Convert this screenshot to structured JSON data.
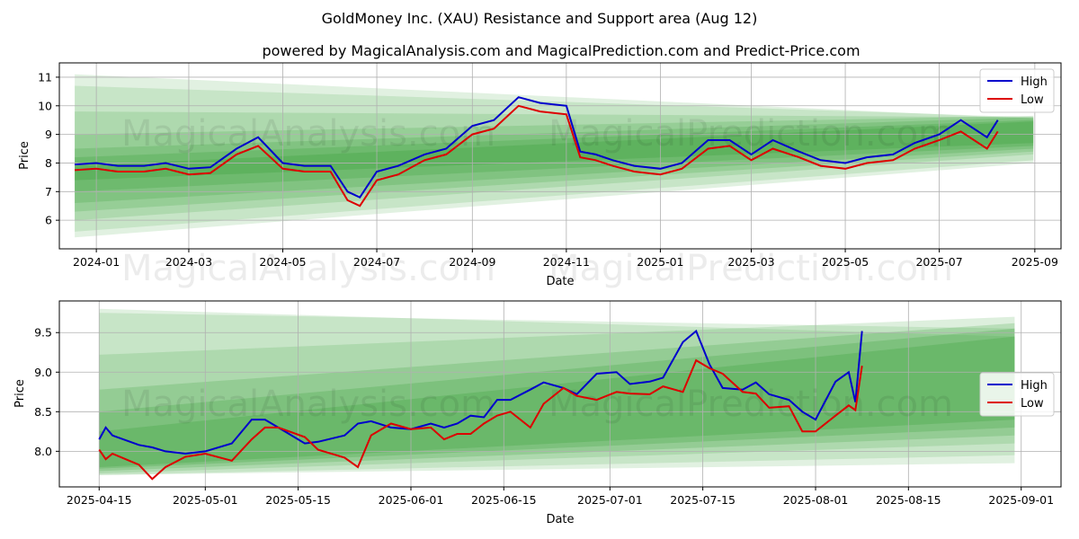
{
  "title": "GoldMoney Inc. (XAU) Resistance and Support area (Aug 12)",
  "subtitle": "powered by MagicalAnalysis.com and MagicalPrediction.com and Predict-Price.com",
  "watermark_left": "MagicalAnalysis.com",
  "watermark_right": "MagicalPrediction.com",
  "colors": {
    "high": "#0000cc",
    "low": "#dd0000",
    "band": "#2e9a2e",
    "grid": "#b0b0b0"
  },
  "chart_data": [
    {
      "type": "line",
      "xlabel": "Date",
      "ylabel": "Price",
      "xlim": [
        "2023-12-08",
        "2025-09-18"
      ],
      "ylim": [
        5.0,
        11.5
      ],
      "xticks": [
        "2024-01",
        "2024-03",
        "2024-05",
        "2024-07",
        "2024-09",
        "2024-11",
        "2025-01",
        "2025-03",
        "2025-05",
        "2025-07",
        "2025-09"
      ],
      "xtick_dates": [
        "2024-01-01",
        "2024-03-01",
        "2024-05-01",
        "2024-07-01",
        "2024-09-01",
        "2024-11-01",
        "2025-01-01",
        "2025-03-01",
        "2025-05-01",
        "2025-07-01",
        "2025-09-01"
      ],
      "yticks": [
        6,
        7,
        8,
        9,
        10,
        11
      ],
      "grid": true,
      "legend": "top-right",
      "x": [
        "2023-12-18",
        "2024-01-01",
        "2024-01-15",
        "2024-02-01",
        "2024-02-15",
        "2024-03-01",
        "2024-03-15",
        "2024-04-01",
        "2024-04-15",
        "2024-05-01",
        "2024-05-15",
        "2024-06-01",
        "2024-06-12",
        "2024-06-20",
        "2024-07-01",
        "2024-07-15",
        "2024-08-01",
        "2024-08-15",
        "2024-09-01",
        "2024-09-15",
        "2024-10-01",
        "2024-10-15",
        "2024-11-01",
        "2024-11-10",
        "2024-11-20",
        "2024-12-01",
        "2024-12-15",
        "2025-01-01",
        "2025-01-15",
        "2025-02-01",
        "2025-02-15",
        "2025-03-01",
        "2025-03-15",
        "2025-04-01",
        "2025-04-15",
        "2025-05-01",
        "2025-05-15",
        "2025-06-01",
        "2025-06-15",
        "2025-07-01",
        "2025-07-15",
        "2025-08-01",
        "2025-08-08"
      ],
      "series": [
        {
          "name": "High",
          "values": [
            7.95,
            8.0,
            7.9,
            7.9,
            8.0,
            7.8,
            7.85,
            8.5,
            8.9,
            8.0,
            7.9,
            7.9,
            7.0,
            6.8,
            7.7,
            7.9,
            8.3,
            8.5,
            9.3,
            9.5,
            10.3,
            10.1,
            10.0,
            8.4,
            8.3,
            8.1,
            7.9,
            7.8,
            8.0,
            8.8,
            8.8,
            8.3,
            8.8,
            8.4,
            8.1,
            8.0,
            8.2,
            8.3,
            8.7,
            9.0,
            9.5,
            8.9,
            9.5
          ]
        },
        {
          "name": "Low",
          "values": [
            7.75,
            7.8,
            7.7,
            7.7,
            7.8,
            7.6,
            7.65,
            8.3,
            8.6,
            7.8,
            7.7,
            7.7,
            6.7,
            6.5,
            7.4,
            7.6,
            8.1,
            8.3,
            9.0,
            9.2,
            10.0,
            9.8,
            9.7,
            8.2,
            8.1,
            7.9,
            7.7,
            7.6,
            7.8,
            8.5,
            8.6,
            8.1,
            8.5,
            8.2,
            7.9,
            7.8,
            8.0,
            8.1,
            8.5,
            8.8,
            9.1,
            8.5,
            9.1
          ]
        }
      ]
    },
    {
      "type": "line",
      "xlabel": "Date",
      "ylabel": "Price",
      "xlim": [
        "2025-04-09",
        "2025-09-07"
      ],
      "ylim": [
        7.55,
        9.9
      ],
      "xticks": [
        "2025-04-15",
        "2025-05-01",
        "2025-05-15",
        "2025-06-01",
        "2025-06-15",
        "2025-07-01",
        "2025-07-15",
        "2025-08-01",
        "2025-08-15",
        "2025-09-01"
      ],
      "yticks": [
        8.0,
        8.5,
        9.0,
        9.5
      ],
      "ytick_labels": [
        "8.0",
        "8.5",
        "9.0",
        "9.5"
      ],
      "grid": true,
      "legend": "right",
      "x": [
        "2025-04-15",
        "2025-04-16",
        "2025-04-17",
        "2025-04-21",
        "2025-04-23",
        "2025-04-25",
        "2025-04-28",
        "2025-05-01",
        "2025-05-05",
        "2025-05-08",
        "2025-05-10",
        "2025-05-12",
        "2025-05-16",
        "2025-05-18",
        "2025-05-22",
        "2025-05-24",
        "2025-05-26",
        "2025-05-29",
        "2025-06-01",
        "2025-06-04",
        "2025-06-06",
        "2025-06-08",
        "2025-06-10",
        "2025-06-12",
        "2025-06-14",
        "2025-06-16",
        "2025-06-19",
        "2025-06-21",
        "2025-06-24",
        "2025-06-26",
        "2025-06-29",
        "2025-07-02",
        "2025-07-04",
        "2025-07-07",
        "2025-07-09",
        "2025-07-12",
        "2025-07-14",
        "2025-07-16",
        "2025-07-18",
        "2025-07-21",
        "2025-07-23",
        "2025-07-25",
        "2025-07-28",
        "2025-07-30",
        "2025-08-01",
        "2025-08-04",
        "2025-08-06",
        "2025-08-07",
        "2025-08-08"
      ],
      "series": [
        {
          "name": "High",
          "values": [
            8.15,
            8.3,
            8.2,
            8.08,
            8.05,
            8.0,
            7.97,
            8.0,
            8.1,
            8.4,
            8.4,
            8.3,
            8.1,
            8.12,
            8.2,
            8.35,
            8.38,
            8.3,
            8.28,
            8.35,
            8.3,
            8.35,
            8.45,
            8.43,
            8.65,
            8.65,
            8.78,
            8.87,
            8.8,
            8.72,
            8.98,
            9.0,
            8.85,
            8.88,
            8.93,
            9.38,
            9.52,
            9.1,
            8.8,
            8.78,
            8.87,
            8.72,
            8.65,
            8.5,
            8.4,
            8.88,
            9.0,
            8.62,
            9.52
          ]
        },
        {
          "name": "Low",
          "values": [
            8.02,
            7.9,
            7.97,
            7.83,
            7.65,
            7.8,
            7.93,
            7.97,
            7.88,
            8.15,
            8.3,
            8.3,
            8.18,
            8.02,
            7.92,
            7.8,
            8.2,
            8.35,
            8.28,
            8.3,
            8.15,
            8.22,
            8.22,
            8.35,
            8.45,
            8.5,
            8.3,
            8.6,
            8.8,
            8.7,
            8.65,
            8.75,
            8.73,
            8.72,
            8.82,
            8.75,
            9.15,
            9.05,
            8.98,
            8.75,
            8.73,
            8.55,
            8.57,
            8.25,
            8.25,
            8.45,
            8.58,
            8.52,
            9.08
          ]
        }
      ]
    }
  ]
}
